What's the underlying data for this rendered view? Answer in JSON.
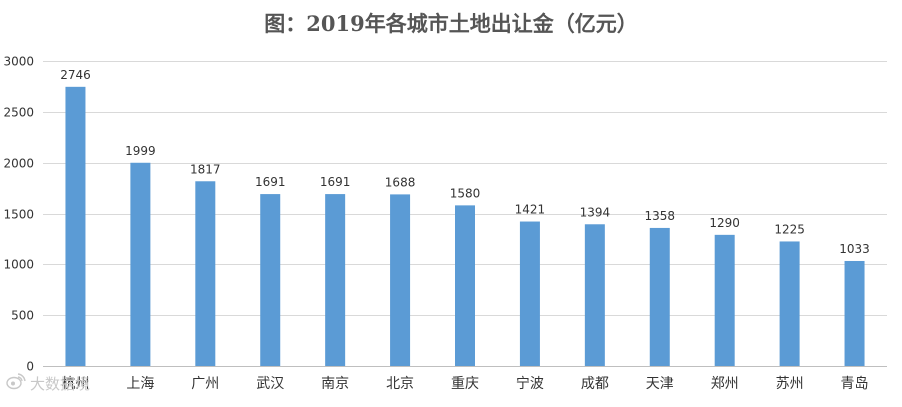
{
  "chart_data": {
    "type": "bar",
    "title": "图：2019年各城市土地出让金（亿元）",
    "xlabel": "",
    "ylabel": "",
    "categories": [
      "杭州",
      "上海",
      "广州",
      "武汉",
      "南京",
      "北京",
      "重庆",
      "宁波",
      "成都",
      "天津",
      "郑州",
      "苏州",
      "青岛"
    ],
    "values": [
      2746,
      1999,
      1817,
      1691,
      1691,
      1688,
      1580,
      1421,
      1394,
      1358,
      1290,
      1225,
      1033
    ],
    "ylim": [
      0,
      3000
    ],
    "yticks": [
      0,
      500,
      1000,
      1500,
      2000,
      2500,
      3000
    ],
    "bar_color": "#5b9bd5",
    "grid": true,
    "legend": "none"
  },
  "watermark": {
    "text": "大数据境",
    "icon": "weibo-icon"
  }
}
